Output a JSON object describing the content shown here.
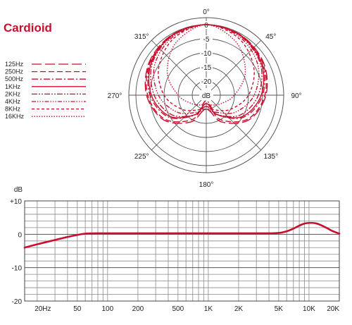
{
  "title": "Cardioid",
  "colors": {
    "accent": "#c8102e",
    "grid": "#555555",
    "text": "#222222"
  },
  "chart_data": [
    {
      "type": "polar",
      "angle_labels": [
        "0°",
        "45°",
        "90°",
        "135°",
        "180°",
        "225°",
        "270°",
        "315°"
      ],
      "ring_labels": [
        "0",
        "-5",
        "-10",
        "-15",
        "-20",
        "dB"
      ],
      "r_range_db": [
        -25,
        0
      ],
      "legend_placement": "left",
      "legend": [
        "125Hz",
        "250Hz",
        "500Hz",
        "1KHz",
        "2KHz",
        "4KHz",
        "8KHz",
        "16KHz"
      ],
      "series": [
        {
          "name": "125Hz",
          "dash": "long-dash",
          "points": [
            [
              0,
              0
            ],
            [
              30,
              -0.4
            ],
            [
              60,
              -1.6
            ],
            [
              90,
              -3.8
            ],
            [
              120,
              -7.5
            ],
            [
              150,
              -14
            ],
            [
              180,
              -20
            ],
            [
              210,
              -14
            ],
            [
              240,
              -7.5
            ],
            [
              270,
              -3.8
            ],
            [
              300,
              -1.6
            ],
            [
              330,
              -0.4
            ]
          ]
        },
        {
          "name": "250Hz",
          "dash": "dash",
          "points": [
            [
              0,
              0
            ],
            [
              30,
              -0.5
            ],
            [
              60,
              -1.9
            ],
            [
              90,
              -4.2
            ],
            [
              120,
              -8
            ],
            [
              150,
              -15
            ],
            [
              180,
              -22
            ],
            [
              210,
              -15
            ],
            [
              240,
              -8
            ],
            [
              270,
              -4.2
            ],
            [
              300,
              -1.9
            ],
            [
              330,
              -0.5
            ]
          ]
        },
        {
          "name": "500Hz",
          "dash": "dash-dot",
          "points": [
            [
              0,
              0
            ],
            [
              30,
              -0.6
            ],
            [
              60,
              -2.2
            ],
            [
              90,
              -5
            ],
            [
              120,
              -9.5
            ],
            [
              150,
              -17
            ],
            [
              180,
              -23
            ],
            [
              210,
              -17
            ],
            [
              240,
              -9.5
            ],
            [
              270,
              -5
            ],
            [
              300,
              -2.2
            ],
            [
              330,
              -0.6
            ]
          ]
        },
        {
          "name": "1KHz",
          "dash": "solid",
          "points": [
            [
              0,
              0
            ],
            [
              30,
              -0.6
            ],
            [
              60,
              -2.4
            ],
            [
              90,
              -5.5
            ],
            [
              120,
              -10
            ],
            [
              150,
              -17
            ],
            [
              180,
              -22
            ],
            [
              210,
              -17
            ],
            [
              240,
              -10
            ],
            [
              270,
              -5.5
            ],
            [
              300,
              -2.4
            ],
            [
              330,
              -0.6
            ]
          ]
        },
        {
          "name": "2KHz",
          "dash": "dash-dot-dot",
          "points": [
            [
              0,
              0
            ],
            [
              30,
              -0.8
            ],
            [
              60,
              -2.8
            ],
            [
              90,
              -6.5
            ],
            [
              120,
              -11
            ],
            [
              150,
              -17
            ],
            [
              180,
              -21
            ],
            [
              210,
              -17
            ],
            [
              240,
              -11
            ],
            [
              270,
              -6.5
            ],
            [
              300,
              -2.8
            ],
            [
              330,
              -0.8
            ]
          ]
        },
        {
          "name": "4KHz",
          "dash": "dash-dot-dot-dot",
          "points": [
            [
              0,
              0
            ],
            [
              30,
              -1.2
            ],
            [
              60,
              -3.8
            ],
            [
              90,
              -8
            ],
            [
              120,
              -13
            ],
            [
              150,
              -18
            ],
            [
              180,
              -20
            ],
            [
              210,
              -18
            ],
            [
              240,
              -13
            ],
            [
              270,
              -8
            ],
            [
              300,
              -3.8
            ],
            [
              330,
              -1.2
            ]
          ]
        },
        {
          "name": "8KHz",
          "dash": "short-dash",
          "points": [
            [
              0,
              0
            ],
            [
              30,
              -1.8
            ],
            [
              60,
              -5.5
            ],
            [
              90,
              -10
            ],
            [
              120,
              -15
            ],
            [
              150,
              -19
            ],
            [
              180,
              -21
            ],
            [
              210,
              -19
            ],
            [
              240,
              -15
            ],
            [
              270,
              -10
            ],
            [
              300,
              -5.5
            ],
            [
              330,
              -1.8
            ]
          ]
        },
        {
          "name": "16KHz",
          "dash": "dot",
          "points": [
            [
              0,
              0
            ],
            [
              30,
              -3.5
            ],
            [
              60,
              -9
            ],
            [
              90,
              -15
            ],
            [
              120,
              -19
            ],
            [
              150,
              -21
            ],
            [
              180,
              -22
            ],
            [
              210,
              -21
            ],
            [
              240,
              -19
            ],
            [
              270,
              -15
            ],
            [
              300,
              -9
            ],
            [
              330,
              -3.5
            ]
          ]
        }
      ]
    },
    {
      "type": "line",
      "ylabel": "dB",
      "y_ticks": [
        "+10",
        "0",
        "-10",
        "-20"
      ],
      "ylim": [
        -20,
        10
      ],
      "x_scale": "log",
      "xlim": [
        15,
        20000
      ],
      "x_tick_labels": [
        "20Hz",
        "50",
        "100",
        "200",
        "500",
        "1K",
        "2K",
        "5K",
        "10K",
        "20K"
      ],
      "x_tick_values": [
        20,
        50,
        100,
        200,
        500,
        1000,
        2000,
        5000,
        10000,
        20000
      ],
      "grid": true,
      "series": [
        {
          "x": [
            15,
            20,
            30,
            40,
            50,
            60,
            80,
            100,
            200,
            500,
            1000,
            2000,
            4000,
            5000,
            6000,
            7000,
            8000,
            9000,
            10000,
            11000,
            12000,
            13000,
            15000,
            17000,
            20000
          ],
          "y": [
            -4,
            -3,
            -1.7,
            -0.8,
            -0.2,
            0.2,
            0.3,
            0.3,
            0.3,
            0.3,
            0.3,
            0.3,
            0.3,
            0.4,
            0.9,
            1.7,
            2.6,
            3.2,
            3.4,
            3.4,
            3.2,
            2.8,
            1.9,
            1.0,
            0.2
          ]
        }
      ]
    }
  ]
}
